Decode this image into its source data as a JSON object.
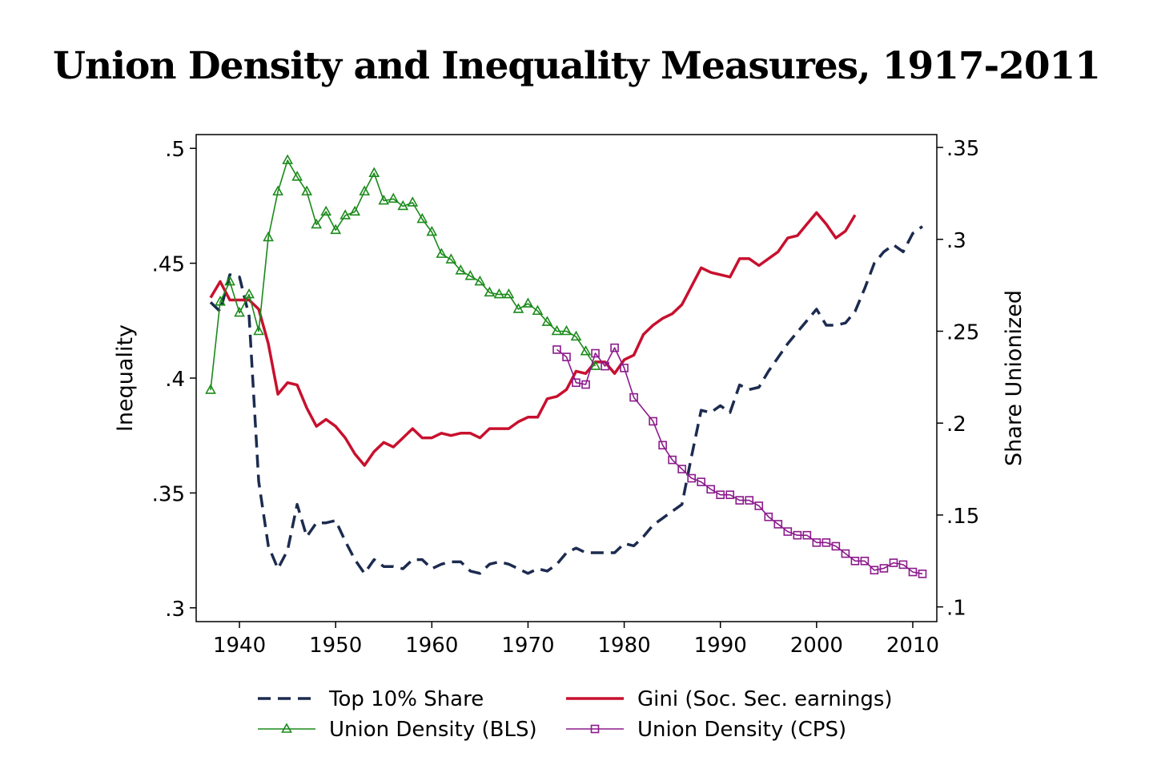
{
  "chart_data": {
    "type": "line",
    "title": "Union Density and Inequality Measures, 1917-2011",
    "ylabel_left": "Inequality",
    "ylabel_right": "Share Unionized",
    "xlim": [
      1935.5,
      2012.5
    ],
    "ylim_left": [
      0.294,
      0.506
    ],
    "ylim_right": [
      0.092,
      0.357
    ],
    "xticks": [
      1940,
      1950,
      1960,
      1970,
      1980,
      1990,
      2000,
      2010
    ],
    "yticks_left": [
      {
        "v": 0.3,
        "label": ".3"
      },
      {
        "v": 0.35,
        "label": ".35"
      },
      {
        "v": 0.4,
        "label": ".4"
      },
      {
        "v": 0.45,
        "label": ".45"
      },
      {
        "v": 0.5,
        "label": ".5"
      }
    ],
    "yticks_right": [
      {
        "v": 0.1,
        "label": ".1"
      },
      {
        "v": 0.15,
        "label": ".15"
      },
      {
        "v": 0.2,
        "label": ".2"
      },
      {
        "v": 0.25,
        "label": ".25"
      },
      {
        "v": 0.3,
        "label": ".3"
      },
      {
        "v": 0.35,
        "label": ".35"
      }
    ],
    "grid": false,
    "legend_placement": "bottom",
    "series": [
      {
        "name": "Top 10% Share",
        "axis": "left",
        "color": "#1c2b4f",
        "style": "dashed",
        "marker": "none",
        "start": 1937,
        "values": [
          0.433,
          0.429,
          0.445,
          0.444,
          0.427,
          0.355,
          0.327,
          0.317,
          0.325,
          0.345,
          0.331,
          0.337,
          0.337,
          0.338,
          0.329,
          0.321,
          0.315,
          0.321,
          0.318,
          0.318,
          0.317,
          0.321,
          0.321,
          0.317,
          0.319,
          0.32,
          0.32,
          0.316,
          0.315,
          0.319,
          0.32,
          0.319,
          0.317,
          0.315,
          0.317,
          0.316,
          0.319,
          0.324,
          0.326,
          0.324,
          0.324,
          0.324,
          0.324,
          0.328,
          0.327,
          0.331,
          0.336,
          0.339,
          0.342,
          0.345,
          0.366,
          0.386,
          0.385,
          0.388,
          0.385,
          0.397,
          0.395,
          0.396,
          0.403,
          0.409,
          0.415,
          0.42,
          0.425,
          0.43,
          0.423,
          0.423,
          0.424,
          0.429,
          0.439,
          0.45,
          0.455,
          0.458,
          0.455,
          0.463,
          0.466
        ]
      },
      {
        "name": "Gini (Soc. Sec. earnings)",
        "axis": "left",
        "color": "#c8102e",
        "style": "solid",
        "marker": "none",
        "start": 1937,
        "values": [
          0.435,
          0.442,
          0.434,
          0.434,
          0.434,
          0.43,
          0.415,
          0.393,
          0.398,
          0.397,
          0.387,
          0.379,
          0.382,
          0.379,
          0.374,
          0.367,
          0.362,
          0.368,
          0.372,
          0.37,
          0.374,
          0.378,
          0.374,
          0.374,
          0.376,
          0.375,
          0.376,
          0.376,
          0.374,
          0.378,
          0.378,
          0.378,
          0.381,
          0.383,
          0.383,
          0.391,
          0.392,
          0.395,
          0.403,
          0.402,
          0.407,
          0.407,
          0.402,
          0.408,
          0.41,
          0.419,
          0.423,
          0.426,
          0.428,
          0.432,
          0.44,
          0.448,
          0.446,
          0.445,
          0.444,
          0.452,
          0.452,
          0.449,
          0.452,
          0.455,
          0.461,
          0.462,
          0.467,
          0.472,
          0.467,
          0.461,
          0.464,
          0.471
        ]
      },
      {
        "name": "Union Density (BLS)",
        "axis": "right",
        "color": "#1a8a1a",
        "style": "solid",
        "marker": "triangle",
        "start": 1937,
        "values": [
          0.218,
          0.266,
          0.277,
          0.26,
          0.27,
          0.25,
          0.301,
          0.326,
          0.343,
          0.334,
          0.326,
          0.308,
          0.315,
          0.305,
          0.313,
          0.315,
          0.326,
          0.336,
          0.321,
          0.322,
          0.318,
          0.32,
          0.311,
          0.304,
          0.292,
          0.289,
          0.283,
          0.28,
          0.277,
          0.271,
          0.27,
          0.27,
          0.262,
          0.265,
          0.261,
          0.255,
          0.25,
          0.25,
          0.247,
          0.239,
          0.231
        ]
      },
      {
        "name": "Union Density (CPS)",
        "axis": "right",
        "color": "#8b1a8b",
        "style": "solid",
        "marker": "square",
        "points": [
          [
            1973,
            0.24
          ],
          [
            1974,
            0.236
          ],
          [
            1975,
            0.222
          ],
          [
            1976,
            0.221
          ],
          [
            1977,
            0.238
          ],
          [
            1978,
            0.231
          ],
          [
            1979,
            0.241
          ],
          [
            1980,
            0.23
          ],
          [
            1981,
            0.214
          ],
          [
            1983,
            0.201
          ],
          [
            1984,
            0.188
          ],
          [
            1985,
            0.18
          ],
          [
            1986,
            0.175
          ],
          [
            1987,
            0.17
          ],
          [
            1988,
            0.168
          ],
          [
            1989,
            0.164
          ],
          [
            1990,
            0.161
          ],
          [
            1991,
            0.161
          ],
          [
            1992,
            0.158
          ],
          [
            1993,
            0.158
          ],
          [
            1994,
            0.155
          ],
          [
            1995,
            0.149
          ],
          [
            1996,
            0.145
          ],
          [
            1997,
            0.141
          ],
          [
            1998,
            0.139
          ],
          [
            1999,
            0.139
          ],
          [
            2000,
            0.135
          ],
          [
            2001,
            0.135
          ],
          [
            2002,
            0.133
          ],
          [
            2003,
            0.129
          ],
          [
            2004,
            0.125
          ],
          [
            2005,
            0.125
          ],
          [
            2006,
            0.12
          ],
          [
            2007,
            0.121
          ],
          [
            2008,
            0.124
          ],
          [
            2009,
            0.123
          ],
          [
            2010,
            0.119
          ],
          [
            2011,
            0.118
          ]
        ]
      }
    ]
  }
}
